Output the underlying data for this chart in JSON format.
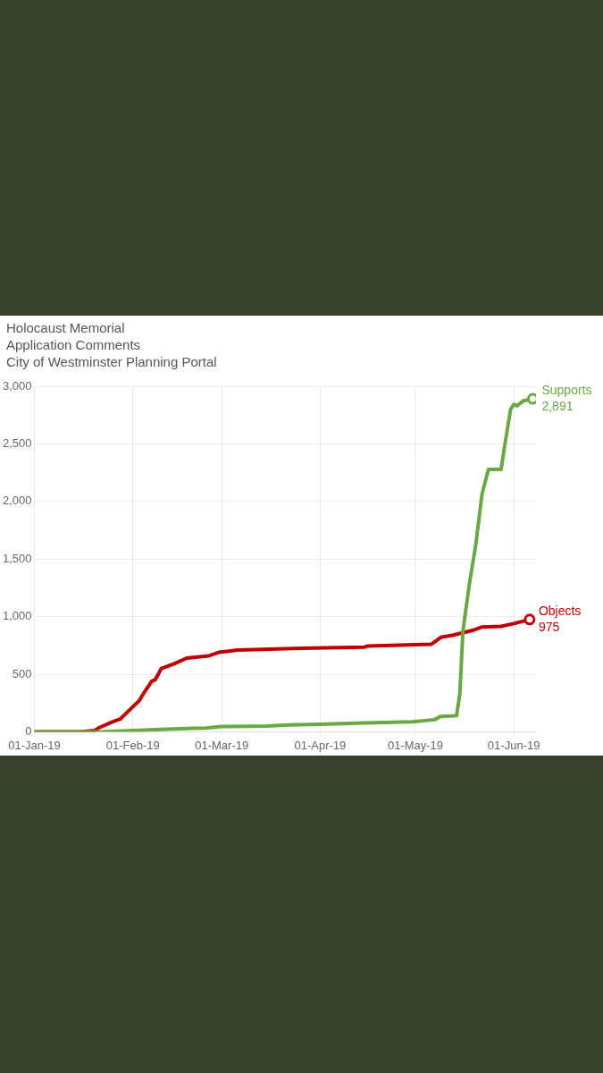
{
  "chart_data": {
    "type": "line",
    "title": "Holocaust Memorial\nApplication Comments\nCity of Westminster Planning Portal",
    "xlim": [
      "2019-01-01",
      "2019-06-08"
    ],
    "xticks": [
      {
        "value": "2019-01-01",
        "label": "01-Jan-19"
      },
      {
        "value": "2019-02-01",
        "label": "01-Feb-19"
      },
      {
        "value": "2019-03-01",
        "label": "01-Mar-19"
      },
      {
        "value": "2019-04-01",
        "label": "01-Apr-19"
      },
      {
        "value": "2019-05-01",
        "label": "01-May-19"
      },
      {
        "value": "2019-06-01",
        "label": "01-Jun-19"
      }
    ],
    "ylim": [
      0,
      3000
    ],
    "yticks": [
      {
        "value": 0,
        "label": "0"
      },
      {
        "value": 500,
        "label": "500"
      },
      {
        "value": 1000,
        "label": "1,000"
      },
      {
        "value": 1500,
        "label": "1,500"
      },
      {
        "value": 2000,
        "label": "2,000"
      },
      {
        "value": 2500,
        "label": "2,500"
      },
      {
        "value": 3000,
        "label": "3,000"
      }
    ],
    "grid": true,
    "legend": false,
    "series": [
      {
        "name": "Supports",
        "color": "#6aa843",
        "x": [
          "2019-01-01",
          "2019-01-22",
          "2019-02-01",
          "2019-02-10",
          "2019-02-20",
          "2019-02-24",
          "2019-03-01",
          "2019-03-15",
          "2019-03-22",
          "2019-04-01",
          "2019-04-15",
          "2019-04-30",
          "2019-05-07",
          "2019-05-09",
          "2019-05-14",
          "2019-05-15",
          "2019-05-16",
          "2019-05-18",
          "2019-05-20",
          "2019-05-22",
          "2019-05-24",
          "2019-05-28",
          "2019-05-29",
          "2019-05-31",
          "2019-06-01",
          "2019-06-02",
          "2019-06-04",
          "2019-06-07"
        ],
        "values": [
          0,
          0,
          10,
          20,
          30,
          32,
          45,
          50,
          60,
          66,
          76,
          87,
          105,
          134,
          140,
          330,
          880,
          1280,
          1620,
          2065,
          2277,
          2277,
          2460,
          2800,
          2842,
          2830,
          2874,
          2891
        ],
        "value_labels": [
          null,
          null,
          null,
          null,
          null,
          null,
          null,
          null,
          null,
          null,
          null,
          null,
          null,
          null,
          null,
          null,
          null,
          null,
          null,
          null,
          null,
          null,
          null,
          null,
          null,
          null,
          null,
          "2,891"
        ]
      },
      {
        "name": "Objects",
        "color": "#c00000",
        "x": [
          "2019-01-01",
          "2019-01-15",
          "2019-01-20",
          "2019-01-21",
          "2019-01-25",
          "2019-01-28",
          "2019-01-31",
          "2019-02-03",
          "2019-02-05",
          "2019-02-07",
          "2019-02-08",
          "2019-02-10",
          "2019-02-14",
          "2019-02-18",
          "2019-02-25",
          "2019-02-28",
          "2019-03-06",
          "2019-03-26",
          "2019-04-15",
          "2019-04-16",
          "2019-05-06",
          "2019-05-09",
          "2019-05-13",
          "2019-05-19",
          "2019-05-22",
          "2019-05-28",
          "2019-06-01",
          "2019-06-06"
        ],
        "values": [
          0,
          0,
          10,
          30,
          80,
          110,
          190,
          270,
          360,
          440,
          450,
          550,
          590,
          640,
          660,
          690,
          710,
          725,
          735,
          745,
          760,
          820,
          840,
          880,
          910,
          915,
          940,
          975
        ],
        "value_labels": [
          null,
          null,
          null,
          null,
          null,
          null,
          null,
          null,
          null,
          null,
          null,
          null,
          null,
          null,
          null,
          null,
          null,
          null,
          null,
          null,
          null,
          null,
          null,
          null,
          null,
          null,
          null,
          "975"
        ]
      }
    ]
  }
}
